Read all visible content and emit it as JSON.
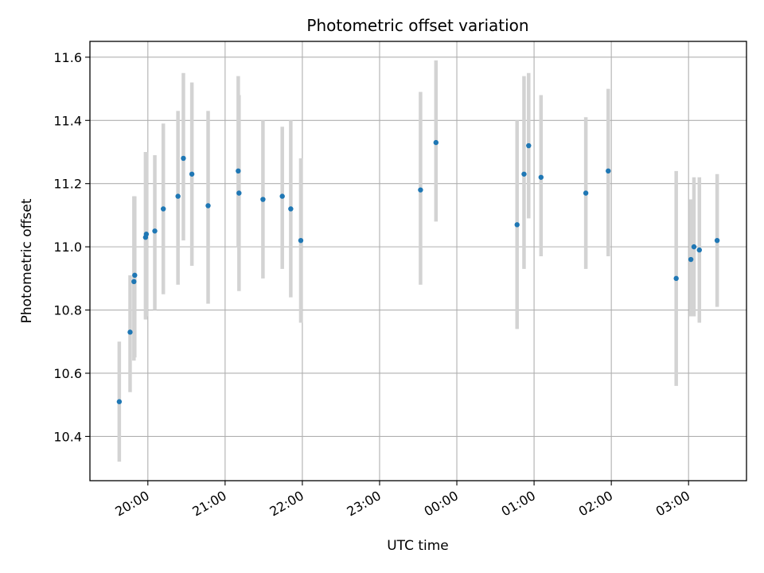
{
  "chart_data": {
    "type": "scatter",
    "title": "Photometric offset variation",
    "xlabel": "UTC time",
    "ylabel": "Photometric offset",
    "x_unit": "hours since 19:00 UTC",
    "xlim": [
      0.25,
      8.75
    ],
    "ylim": [
      10.26,
      11.65
    ],
    "grid": true,
    "x_tick_values": [
      1,
      2,
      3,
      4,
      5,
      6,
      7,
      8
    ],
    "x_tick_labels": [
      "20:00",
      "21:00",
      "22:00",
      "23:00",
      "00:00",
      "01:00",
      "02:00",
      "03:00"
    ],
    "y_tick_values": [
      10.4,
      10.6,
      10.8,
      11.0,
      11.2,
      11.4,
      11.6
    ],
    "y_tick_labels": [
      "10.4",
      "10.6",
      "10.8",
      "11.0",
      "11.2",
      "11.4",
      "11.6"
    ],
    "colors": {
      "point": "#1f77b4",
      "errorbar": "#d3d3d3",
      "grid": "#b0b0b0",
      "axis": "#000000"
    },
    "points": [
      {
        "x": 0.63,
        "y": 10.51,
        "low": 10.32,
        "high": 10.7
      },
      {
        "x": 0.77,
        "y": 10.73,
        "low": 10.54,
        "high": 10.91
      },
      {
        "x": 0.82,
        "y": 10.89,
        "low": 10.64,
        "high": 11.16
      },
      {
        "x": 0.83,
        "y": 10.91,
        "low": 10.65,
        "high": 11.16
      },
      {
        "x": 0.97,
        "y": 11.03,
        "low": 10.77,
        "high": 11.3
      },
      {
        "x": 0.98,
        "y": 11.04,
        "low": 10.78,
        "high": 11.3
      },
      {
        "x": 1.09,
        "y": 11.05,
        "low": 10.8,
        "high": 11.29
      },
      {
        "x": 1.2,
        "y": 11.12,
        "low": 10.85,
        "high": 11.39
      },
      {
        "x": 1.39,
        "y": 11.16,
        "low": 10.88,
        "high": 11.43
      },
      {
        "x": 1.46,
        "y": 11.28,
        "low": 11.02,
        "high": 11.55
      },
      {
        "x": 1.57,
        "y": 11.23,
        "low": 10.94,
        "high": 11.52
      },
      {
        "x": 1.78,
        "y": 11.13,
        "low": 10.82,
        "high": 11.43
      },
      {
        "x": 2.17,
        "y": 11.24,
        "low": 11.0,
        "high": 11.54
      },
      {
        "x": 2.18,
        "y": 11.17,
        "low": 10.86,
        "high": 11.48
      },
      {
        "x": 2.49,
        "y": 11.15,
        "low": 10.9,
        "high": 11.4
      },
      {
        "x": 2.74,
        "y": 11.16,
        "low": 10.93,
        "high": 11.38
      },
      {
        "x": 2.85,
        "y": 11.12,
        "low": 10.84,
        "high": 11.4
      },
      {
        "x": 2.98,
        "y": 11.02,
        "low": 10.76,
        "high": 11.28
      },
      {
        "x": 4.53,
        "y": 11.18,
        "low": 10.88,
        "high": 11.49
      },
      {
        "x": 4.73,
        "y": 11.33,
        "low": 11.08,
        "high": 11.59
      },
      {
        "x": 5.78,
        "y": 11.07,
        "low": 10.74,
        "high": 11.4
      },
      {
        "x": 5.87,
        "y": 11.23,
        "low": 10.93,
        "high": 11.54
      },
      {
        "x": 5.93,
        "y": 11.32,
        "low": 11.09,
        "high": 11.55
      },
      {
        "x": 6.09,
        "y": 11.22,
        "low": 10.97,
        "high": 11.48
      },
      {
        "x": 6.67,
        "y": 11.17,
        "low": 10.93,
        "high": 11.41
      },
      {
        "x": 6.96,
        "y": 11.24,
        "low": 10.97,
        "high": 11.5
      },
      {
        "x": 7.84,
        "y": 10.9,
        "low": 10.56,
        "high": 11.24
      },
      {
        "x": 8.03,
        "y": 10.96,
        "low": 10.78,
        "high": 11.15
      },
      {
        "x": 8.07,
        "y": 11.0,
        "low": 10.78,
        "high": 11.22
      },
      {
        "x": 8.14,
        "y": 10.99,
        "low": 10.76,
        "high": 11.22
      },
      {
        "x": 8.37,
        "y": 11.02,
        "low": 10.81,
        "high": 11.23
      }
    ]
  }
}
